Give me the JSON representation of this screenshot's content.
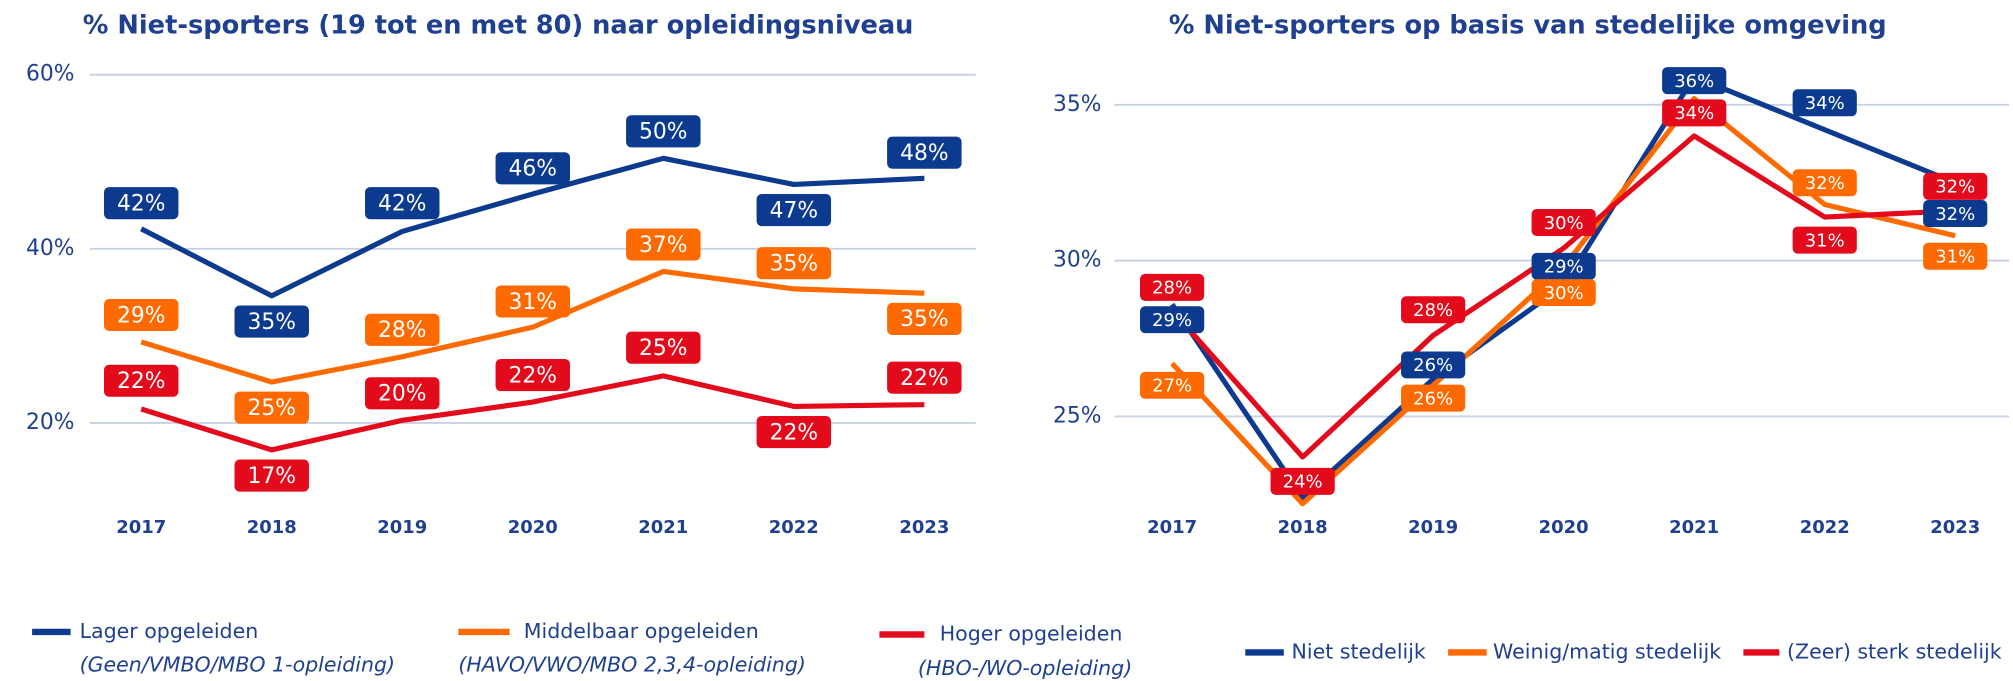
{
  "chart_data": [
    {
      "type": "line",
      "title": "% Niet-sporters (19 tot en met 80) naar opleidingsniveau",
      "categories": [
        "2017",
        "2018",
        "2019",
        "2020",
        "2021",
        "2022",
        "2023"
      ],
      "ylim": [
        10,
        60
      ],
      "yticks": [
        {
          "value": 20,
          "label": "20%"
        },
        {
          "value": 40,
          "label": "40%"
        },
        {
          "value": 60,
          "label": "60%"
        }
      ],
      "grid": true,
      "series": [
        {
          "name": "Lager opgeleiden",
          "legend_note": "(Geen/VMBO/MBO 1-opleiding)",
          "color": "#0b3a8e",
          "values": [
            42.3,
            34.6,
            42.0,
            46.3,
            50.4,
            47.4,
            48.1
          ],
          "value_labels": [
            "42%",
            "35%",
            "42%",
            "46%",
            "50%",
            "47%",
            "48%"
          ]
        },
        {
          "name": "Middelbaar opgeleiden",
          "legend_note": "(HAVO/VWO/MBO 2,3,4-opleiding)",
          "color": "#ff6a00",
          "values": [
            29.3,
            24.7,
            27.6,
            31.0,
            37.4,
            35.4,
            34.9
          ],
          "value_labels": [
            "29%",
            "25%",
            "28%",
            "31%",
            "37%",
            "35%",
            "35%"
          ]
        },
        {
          "name": "Hoger opgeleiden",
          "legend_note": "(HBO-/WO-opleiding)",
          "color": "#e30a1c",
          "values": [
            21.6,
            16.9,
            20.3,
            22.4,
            25.4,
            21.9,
            22.1
          ],
          "value_labels": [
            "22%",
            "17%",
            "20%",
            "22%",
            "25%",
            "22%",
            "22%"
          ]
        }
      ]
    },
    {
      "type": "line",
      "title": "% Niet-sporters op basis van stedelijke omgeving",
      "categories": [
        "2017",
        "2018",
        "2019",
        "2020",
        "2021",
        "2022",
        "2023"
      ],
      "ylim": [
        22,
        36.5
      ],
      "yticks": [
        {
          "value": 25,
          "label": "25%"
        },
        {
          "value": 30,
          "label": "30%"
        },
        {
          "value": 35,
          "label": "35%"
        }
      ],
      "grid": true,
      "series": [
        {
          "name": "Niet stedelijk",
          "color": "#0b3a8e",
          "values": [
            28.6,
            22.4,
            26.2,
            29.2,
            35.9,
            34.2,
            32.5
          ],
          "value_labels": [
            "29%",
            null,
            "26%",
            "29%",
            "36%",
            "34%",
            "32%"
          ]
        },
        {
          "name": "Weinig/matig stedelijk",
          "color": "#ff6a00",
          "values": [
            26.7,
            22.2,
            26.0,
            29.8,
            35.2,
            31.8,
            30.8
          ],
          "value_labels": [
            "27%",
            null,
            "26%",
            "30%",
            null,
            "32%",
            "31%"
          ]
        },
        {
          "name": "(Zeer) sterk stedelijk",
          "color": "#e30a1c",
          "values": [
            28.4,
            23.7,
            27.6,
            30.4,
            34.0,
            31.4,
            31.6
          ],
          "value_labels": [
            "28%",
            "24%",
            "28%",
            "30%",
            "34%",
            "31%",
            "32%"
          ]
        }
      ]
    }
  ]
}
